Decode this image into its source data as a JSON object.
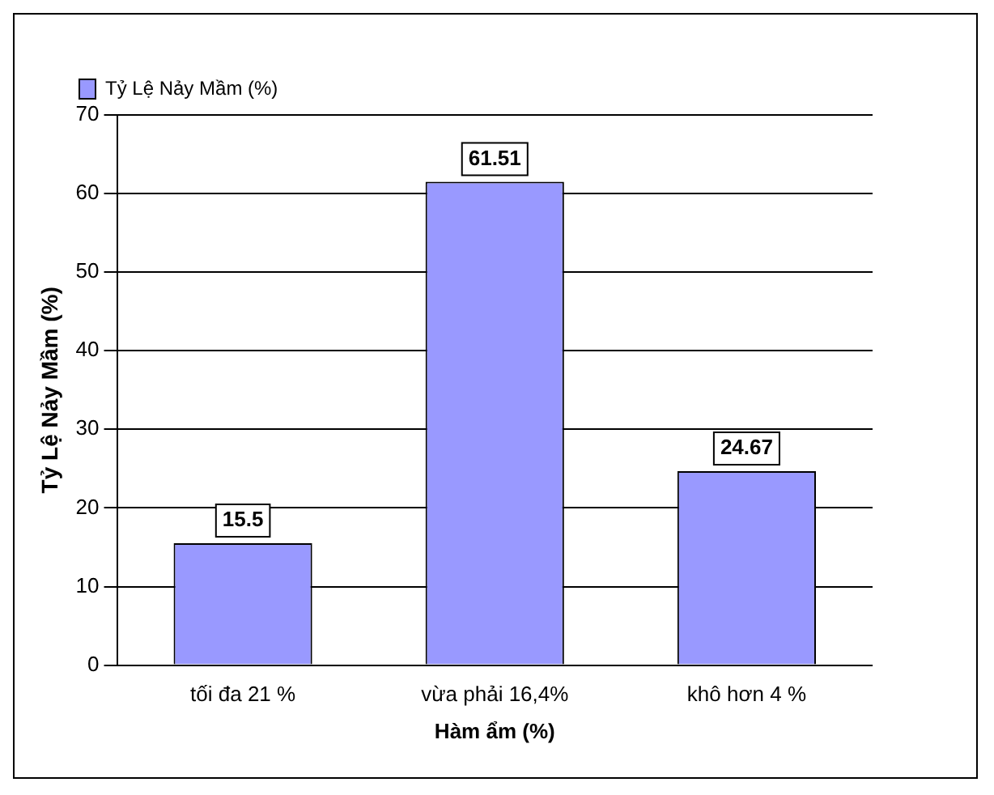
{
  "chart_data": {
    "type": "bar",
    "xlabel": "Hàm ẩm (%)",
    "ylabel": "Tỷ Lệ Nảy Mầm (%)",
    "categories": [
      "tối đa 21 %",
      "vừa phải 16,4%",
      "khô hơn 4 %"
    ],
    "series": [
      {
        "name": "Tỷ Lệ Nảy Mầm (%)",
        "color": "#9999ff",
        "values": [
          15.5,
          61.51,
          24.67
        ]
      }
    ],
    "ylim": [
      0,
      70
    ],
    "yticks": [
      0,
      10,
      20,
      30,
      40,
      50,
      60,
      70
    ],
    "grid": "y",
    "legend": "top left",
    "data_labels": true
  }
}
